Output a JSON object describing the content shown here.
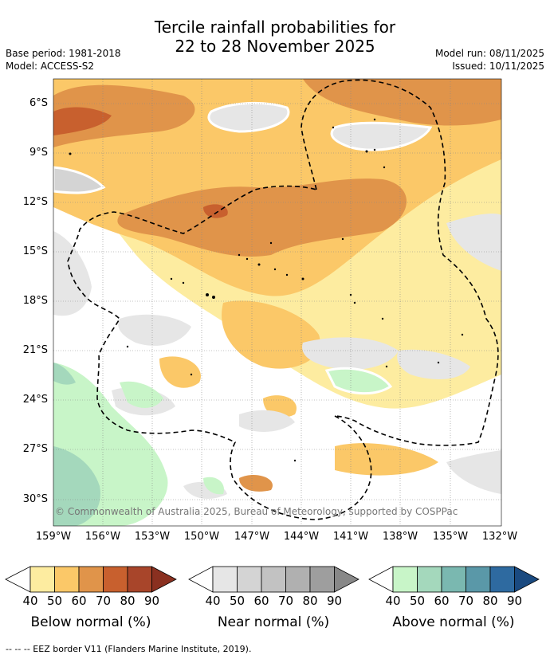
{
  "title": {
    "line1": "Tercile rainfall probabilities for",
    "line2": "22 to 28 November 2025"
  },
  "meta": {
    "base_period": "Base period: 1981-2018",
    "model": "Model: ACCESS-S2",
    "model_run": "Model run: 08/11/2025",
    "issued": "Issued: 10/11/2025"
  },
  "map": {
    "lat_labels": [
      "6°S",
      "9°S",
      "12°S",
      "15°S",
      "18°S",
      "21°S",
      "24°S",
      "27°S",
      "30°S"
    ],
    "lon_labels": [
      "159°W",
      "156°W",
      "153°W",
      "150°W",
      "147°W",
      "144°W",
      "141°W",
      "138°W",
      "135°W",
      "132°W"
    ],
    "copyright": "© Commonwealth of Australia 2025, Bureau of Meteorology, supported by COSPPac"
  },
  "colorbars": [
    {
      "name": "Below normal (%)",
      "ticks": [
        "40",
        "50",
        "60",
        "70",
        "80",
        "90"
      ],
      "colors": [
        "#fdeca0",
        "#fbc868",
        "#e0944a",
        "#c8602e",
        "#a8452a",
        "#8a3020"
      ]
    },
    {
      "name": "Near normal (%)",
      "ticks": [
        "40",
        "50",
        "60",
        "70",
        "80",
        "90"
      ],
      "colors": [
        "#e6e6e6",
        "#d4d4d4",
        "#c2c2c2",
        "#b0b0b0",
        "#9e9e9e",
        "#888888"
      ]
    },
    {
      "name": "Above normal (%)",
      "ticks": [
        "40",
        "50",
        "60",
        "70",
        "80",
        "90"
      ],
      "colors": [
        "#c8f5c8",
        "#a4d8bc",
        "#7ab8b0",
        "#5a98a8",
        "#2e6aa0",
        "#1a4a80"
      ]
    }
  ],
  "footer": "--  --  -- EEZ border V11 (Flanders Marine Institute, 2019)."
}
